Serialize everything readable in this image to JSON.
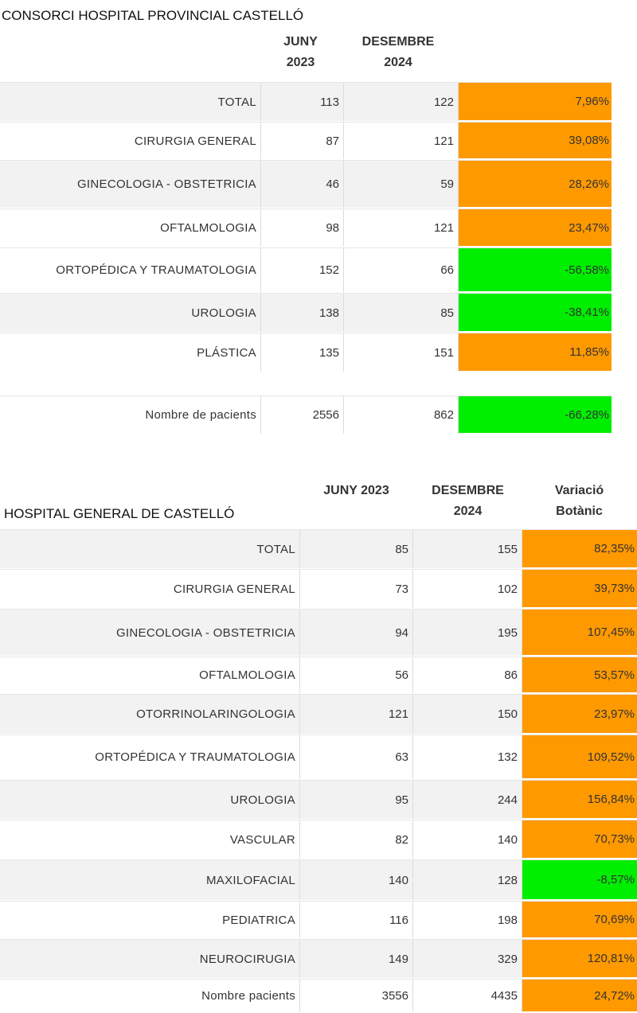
{
  "tables": [
    {
      "title": "CONSORCI HOSPITAL PROVINCIAL CASTELLÓ",
      "headers": [
        "JUNY 2023",
        "DESEMBRE 2024"
      ],
      "rows": [
        {
          "cells": [
            "TOTAL",
            "113",
            "122",
            "7,96%"
          ],
          "color": "#ff9900"
        },
        {
          "cells": [
            "CIRURGIA GENERAL",
            "87",
            "121",
            "39,08%"
          ],
          "color": "#ff9900"
        },
        {
          "cells": [
            "GINECOLOGIA - OBSTETRICIA",
            "46",
            "59",
            "28,26%"
          ],
          "color": "#ff9900"
        },
        {
          "cells": [
            "OFTALMOLOGIA",
            "98",
            "121",
            "23,47%"
          ],
          "color": "#ff9900"
        },
        {
          "cells": [
            "ORTOPÉDICA Y TRAUMATOLOGIA",
            "152",
            "66",
            "-56,58%"
          ],
          "color": "#00ee00"
        },
        {
          "cells": [
            "UROLOGIA",
            "138",
            "85",
            "-38,41%"
          ],
          "color": "#00ee00"
        },
        {
          "cells": [
            "PLÁSTICA",
            "135",
            "151",
            "11,85%"
          ],
          "color": "#ff9900"
        },
        {
          "cells": [
            "Nombre de pacients",
            "2556",
            "862",
            "-66,28%"
          ],
          "color": "#00ee00"
        }
      ]
    },
    {
      "title": "HOSPITAL GENERAL DE CASTELLÓ",
      "headers": [
        "JUNY 2023",
        "DESEMBRE 2024",
        "Variació Botànic"
      ],
      "rows": [
        {
          "cells": [
            "TOTAL",
            "85",
            "155",
            "82,35%"
          ],
          "color": "#ff9900"
        },
        {
          "cells": [
            "CIRURGIA GENERAL",
            "73",
            "102",
            "39,73%"
          ],
          "color": "#ff9900"
        },
        {
          "cells": [
            "GINECOLOGIA - OBSTETRICIA",
            "94",
            "195",
            "107,45%"
          ],
          "color": "#ff9900"
        },
        {
          "cells": [
            "OFTALMOLOGIA",
            "56",
            "86",
            "53,57%"
          ],
          "color": "#ff9900"
        },
        {
          "cells": [
            "OTORRINOLARINGOLOGIA",
            "121",
            "150",
            "23,97%"
          ],
          "color": "#ff9900"
        },
        {
          "cells": [
            "ORTOPÉDICA Y TRAUMATOLOGIA",
            "63",
            "132",
            "109,52%"
          ],
          "color": "#ff9900"
        },
        {
          "cells": [
            "UROLOGIA",
            "95",
            "244",
            "156,84%"
          ],
          "color": "#ff9900"
        },
        {
          "cells": [
            "VASCULAR",
            "82",
            "140",
            "70,73%"
          ],
          "color": "#ff9900"
        },
        {
          "cells": [
            "MAXILOFACIAL",
            "140",
            "128",
            "-8,57%"
          ],
          "color": "#00ee00"
        },
        {
          "cells": [
            "PEDIATRICA",
            "116",
            "198",
            "70,69%"
          ],
          "color": "#ff9900"
        },
        {
          "cells": [
            "NEUROCIRUGIA",
            "149",
            "329",
            "120,81%"
          ],
          "color": "#ff9900"
        },
        {
          "cells": [
            "Nombre pacients",
            "3556",
            "4435",
            "24,72%"
          ],
          "color": "#ff9900"
        }
      ]
    }
  ]
}
